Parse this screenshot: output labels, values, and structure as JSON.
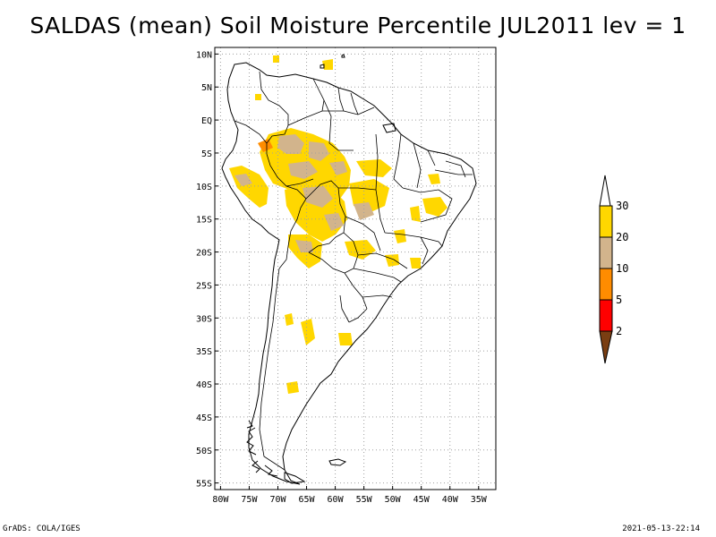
{
  "title": "SALDAS (mean) Soil Moisture Percentile JUL2011 lev = 1",
  "footer": {
    "left": "GrADS: COLA/IGES",
    "right": "2021-05-13-22:14"
  },
  "map": {
    "lat_labels": [
      "10N",
      "5N",
      "EQ",
      "5S",
      "10S",
      "15S",
      "20S",
      "25S",
      "30S",
      "35S",
      "40S",
      "45S",
      "50S",
      "55S"
    ],
    "lat_values": [
      10,
      5,
      0,
      -5,
      -10,
      -15,
      -20,
      -25,
      -30,
      -35,
      -40,
      -45,
      -50,
      -55
    ],
    "lon_labels": [
      "80W",
      "75W",
      "70W",
      "65W",
      "60W",
      "55W",
      "50W",
      "45W",
      "40W",
      "35W"
    ],
    "lon_values": [
      -80,
      -75,
      -70,
      -65,
      -60,
      -55,
      -50,
      -45,
      -40,
      -35
    ],
    "lon_range": [
      -81,
      -32
    ],
    "lat_range": [
      -56,
      11
    ]
  },
  "colorbar": {
    "labels": [
      "2",
      "5",
      "10",
      "20",
      "30"
    ],
    "colors": {
      "below_2": "#7a3e12",
      "2_5": "#ff0000",
      "5_10": "#ff8c00",
      "10_20": "#d2b48c",
      "20_30": "#ffd700",
      "above_30": "#ffffff"
    }
  },
  "colors": {
    "yellow": "#ffd700",
    "tan": "#d2b48c",
    "orange": "#ff8c00"
  }
}
